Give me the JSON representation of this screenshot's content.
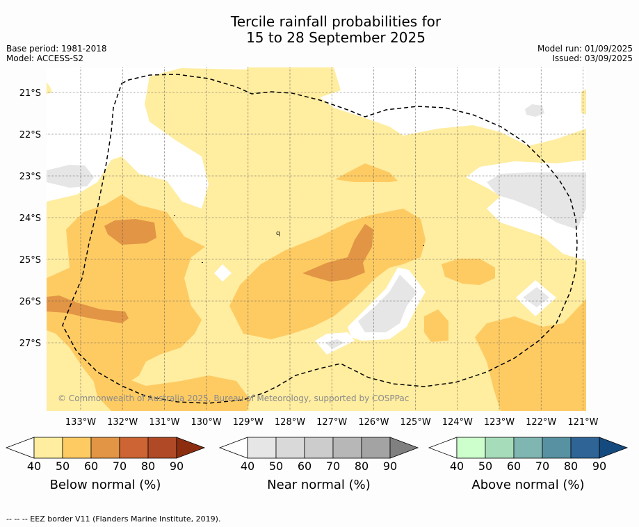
{
  "title_line1": "Tercile rainfall probabilities for",
  "title_line2": "15 to 28 September 2025",
  "base_period": "Base period: 1981-2018",
  "model": "Model: ACCESS-S2",
  "model_run": "Model run: 01/09/2025",
  "issued": "Issued: 03/09/2025",
  "lat_labels": [
    "21°S",
    "22°S",
    "23°S",
    "24°S",
    "25°S",
    "26°S",
    "27°S"
  ],
  "lon_labels": [
    "133°W",
    "132°W",
    "131°W",
    "130°W",
    "129°W",
    "128°W",
    "127°W",
    "126°W",
    "125°W",
    "124°W",
    "123°W",
    "122°W",
    "121°W"
  ],
  "credit": "© Commonwealth of Australia 2025, Bureau of Meteorology, supported by COSPPac",
  "colorbars": [
    {
      "title": "Below normal (%)",
      "ticks": [
        "40",
        "50",
        "60",
        "70",
        "80",
        "90"
      ],
      "colors": [
        "#ffffff",
        "#ffeda0",
        "#fecb63",
        "#e29545",
        "#cc6433",
        "#b04a26",
        "#8c2d10"
      ]
    },
    {
      "title": "Near normal (%)",
      "ticks": [
        "40",
        "50",
        "60",
        "70",
        "80",
        "90"
      ],
      "colors": [
        "#ffffff",
        "#e6e6e6",
        "#d9d9d9",
        "#cccccc",
        "#b7b7b7",
        "#a3a3a3",
        "#808080"
      ]
    },
    {
      "title": "Above normal (%)",
      "ticks": [
        "40",
        "50",
        "60",
        "70",
        "80",
        "90"
      ],
      "colors": [
        "#ffffff",
        "#ccffcc",
        "#a7dcbb",
        "#80b6b1",
        "#5891a1",
        "#2f6596",
        "#154a7e"
      ]
    }
  ],
  "footnote": "-- -- -- EEZ border V11 (Flanders Marine Institute, 2019).",
  "colors": {
    "below50": "#ffeda0",
    "below60": "#fecb63",
    "below70": "#e29545",
    "near50": "#e6e6e6",
    "background": "#ffffff"
  }
}
